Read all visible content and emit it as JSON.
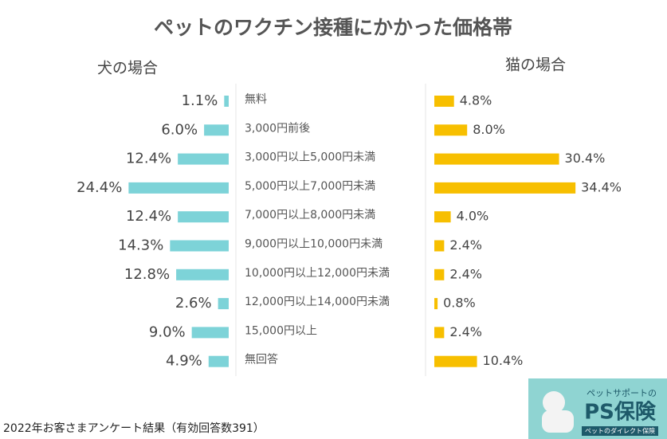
{
  "chart_data": {
    "type": "butterfly-bar",
    "title": "ペットのワクチン接種にかかった価格帯",
    "categories": [
      "無料",
      "3,000円前後",
      "3,000円以上5,000円未満",
      "5,000円以上7,000円未満",
      "7,000円以上8,000円未満",
      "9,000円以上10,000円未満",
      "10,000円以上12,000円未満",
      "12,000円以上14,000円未満",
      "15,000円以上",
      "無回答"
    ],
    "series": [
      {
        "name": "犬の場合",
        "color": "#7dd3d8",
        "values": [
          1.1,
          6.0,
          12.4,
          24.4,
          12.4,
          14.3,
          12.8,
          2.6,
          9.0,
          4.9
        ],
        "value_labels": [
          "1.1%",
          "6.0%",
          "12.4%",
          "24.4%",
          "12.4%",
          "14.3%",
          "12.8%",
          "2.6%",
          "9.0%",
          "4.9%"
        ]
      },
      {
        "name": "猫の場合",
        "color": "#f7bf00",
        "values": [
          4.8,
          8.0,
          30.4,
          34.4,
          4.0,
          2.4,
          2.4,
          0.8,
          2.4,
          10.4
        ],
        "value_labels": [
          "4.8%",
          "8.0%",
          "30.4%",
          "34.4%",
          "4.0%",
          "2.4%",
          "2.4%",
          "0.8%",
          "2.4%",
          "10.4%"
        ]
      }
    ],
    "note": "2022年お客さまアンケート結果（有効回答数391）"
  },
  "logo": {
    "tagline": "ペットサポートの",
    "name": "PS保険",
    "subtitle": "ペットのダイレクト保険"
  }
}
